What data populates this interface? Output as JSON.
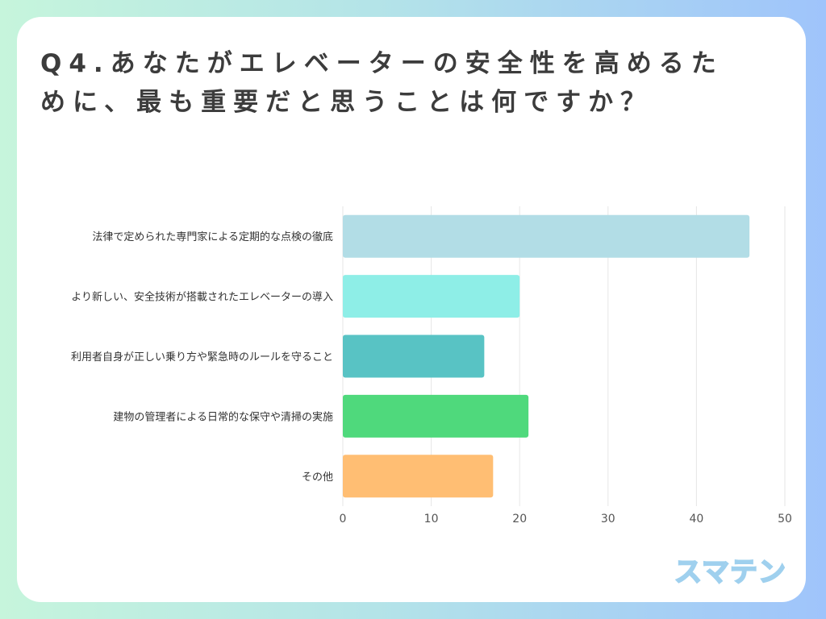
{
  "title": {
    "line1": "Q4.あなたがエレベーターの安全性を高めるた",
    "line2": "めに、最も重要だと思うことは何ですか？"
  },
  "logo": {
    "text": "スマテン"
  },
  "chart_data": {
    "type": "bar",
    "orientation": "horizontal",
    "categories": [
      "法律で定められた専門家による定期的な点検の徹底",
      "より新しい、安全技術が搭載されたエレベーターの導入",
      "利用者自身が正しい乗り方や緊急時のルールを守ること",
      "建物の管理者による日常的な保守や清掃の実施",
      "その他"
    ],
    "values": [
      46,
      20,
      16,
      21,
      17
    ],
    "colors": [
      "#b2dde6",
      "#8eeee7",
      "#58c3c4",
      "#4fd97c",
      "#ffbe73"
    ],
    "xlim": [
      0,
      50
    ],
    "xticks": [
      "0",
      "10",
      "20",
      "30",
      "40",
      "50"
    ],
    "grid": true,
    "xlabel": "",
    "ylabel": ""
  }
}
